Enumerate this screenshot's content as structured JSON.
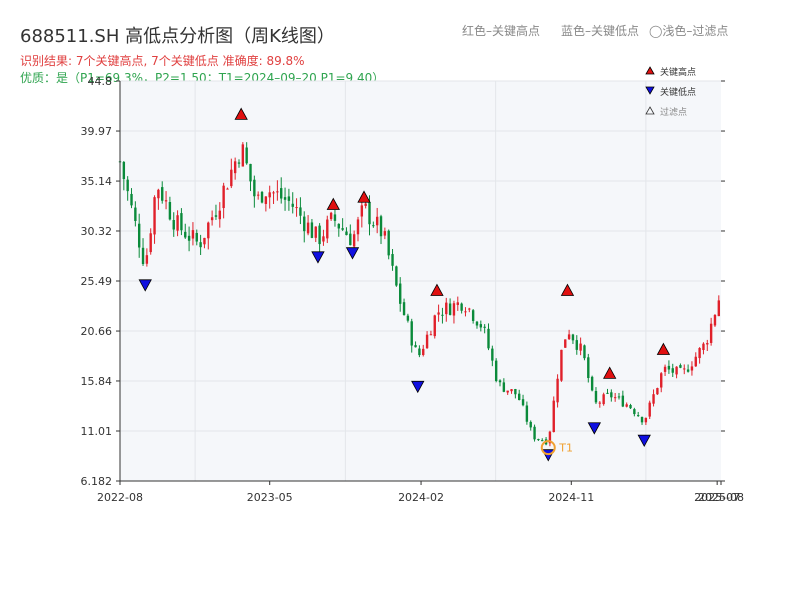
{
  "header": {
    "title": "688511.SH 高低点分析图（周K线图）",
    "legend_red": "红色–关键高点",
    "legend_blue": "蓝色–关键低点",
    "legend_light": "◯浅色–过滤点",
    "result_prefix": "识别结果: 7个关键高点, 7个关键低点",
    "accuracy": "准确度: 89.8%",
    "quality": "优质：是（P1=69.3%，P2=1.50；T1=2024–09–20 P1=9.40）"
  },
  "legend": {
    "high": "关键高点",
    "low": "关键低点",
    "filtered": "过滤点"
  },
  "colors": {
    "up": "#e0202a",
    "down": "#0a8a3a",
    "high_marker": "#e01010",
    "low_marker": "#1010e0",
    "t1": "#f0a030",
    "plot_bg": "#f5f7fa",
    "grid": "#e3e6ea"
  },
  "chart_data": {
    "type": "candlestick",
    "title": "688511.SH 高低点分析图（周K线图）",
    "y_ticks": [
      6.182,
      11.01,
      15.84,
      20.66,
      25.49,
      30.32,
      35.14,
      39.97,
      44.8
    ],
    "ylim": [
      6.182,
      44.8
    ],
    "xlim": [
      "2022-08-01",
      "2025-08-01"
    ],
    "x_ticks": [
      {
        "date": "2022-08-01",
        "label": "2022-08"
      },
      {
        "date": "2023-05-01",
        "label": "2023-05"
      },
      {
        "date": "2024-02-01",
        "label": "2024-02"
      },
      {
        "date": "2024-11-01",
        "label": "2024-11"
      },
      {
        "date": "2025-07-25",
        "label": "2025-07"
      },
      {
        "date": "2025-08-01",
        "label": "2025-08"
      }
    ],
    "grid": true,
    "legend_position": "top-right",
    "key_highs": [
      {
        "date": "2023-03-10",
        "value": 40.9
      },
      {
        "date": "2023-08-25",
        "value": 32.2
      },
      {
        "date": "2023-10-20",
        "value": 32.9
      },
      {
        "date": "2024-03-01",
        "value": 23.9
      },
      {
        "date": "2024-10-25",
        "value": 23.9
      },
      {
        "date": "2025-01-10",
        "value": 15.9
      },
      {
        "date": "2025-04-18",
        "value": 18.2
      }
    ],
    "key_lows": [
      {
        "date": "2022-09-16",
        "value": 25.8
      },
      {
        "date": "2023-07-28",
        "value": 28.5
      },
      {
        "date": "2023-09-29",
        "value": 28.9
      },
      {
        "date": "2024-01-26",
        "value": 16.0
      },
      {
        "date": "2024-09-20",
        "value": 9.4
      },
      {
        "date": "2024-12-13",
        "value": 12.0
      },
      {
        "date": "2025-03-14",
        "value": 10.8
      }
    ],
    "t1": {
      "date": "2024-09-20",
      "value": 9.4,
      "label": "T1"
    },
    "anchors": [
      [
        "2022-08-01",
        37.0
      ],
      [
        "2022-09-16",
        27.0
      ],
      [
        "2022-10-07",
        35.0
      ],
      [
        "2022-11-11",
        31.0
      ],
      [
        "2022-12-23",
        29.0
      ],
      [
        "2023-01-27",
        33.0
      ],
      [
        "2023-03-10",
        38.5
      ],
      [
        "2023-04-07",
        33.0
      ],
      [
        "2023-04-21",
        34.5
      ],
      [
        "2023-06-09",
        33.0
      ],
      [
        "2023-07-28",
        29.5
      ],
      [
        "2023-08-25",
        31.5
      ],
      [
        "2023-09-29",
        29.5
      ],
      [
        "2023-10-20",
        32.5
      ],
      [
        "2023-11-24",
        30.0
      ],
      [
        "2023-12-22",
        24.0
      ],
      [
        "2024-01-26",
        18.0
      ],
      [
        "2024-03-01",
        22.5
      ],
      [
        "2024-04-19",
        23.5
      ],
      [
        "2024-05-24",
        21.0
      ],
      [
        "2024-06-21",
        15.5
      ],
      [
        "2024-07-26",
        14.5
      ],
      [
        "2024-08-23",
        10.5
      ],
      [
        "2024-09-20",
        10.0
      ],
      [
        "2024-10-11",
        18.0
      ],
      [
        "2024-10-25",
        21.0
      ],
      [
        "2024-11-22",
        18.5
      ],
      [
        "2024-12-13",
        13.5
      ],
      [
        "2025-01-10",
        14.5
      ],
      [
        "2025-02-14",
        13.5
      ],
      [
        "2025-03-14",
        12.0
      ],
      [
        "2025-04-18",
        17.0
      ],
      [
        "2025-05-23",
        16.5
      ],
      [
        "2025-07-04",
        19.5
      ],
      [
        "2025-08-01",
        24.5
      ]
    ]
  }
}
